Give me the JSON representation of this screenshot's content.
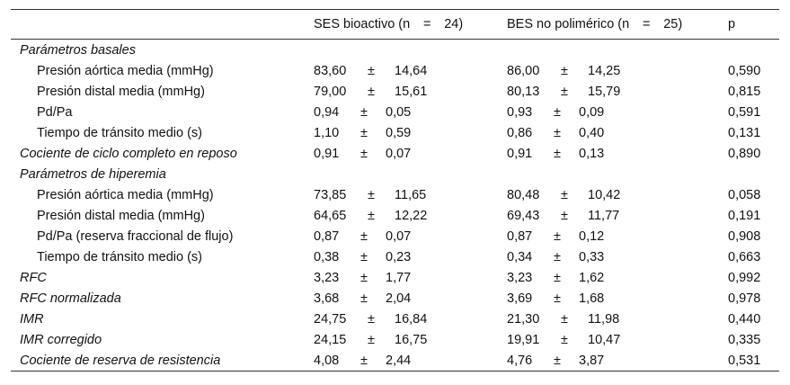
{
  "header": {
    "col_a": {
      "label": "SES bioactivo (n",
      "eq": "=",
      "n": "24)"
    },
    "col_b": {
      "label": "BES no polimérico (n",
      "eq": "=",
      "n": "25)"
    },
    "col_p": "p"
  },
  "pm_symbol": "±",
  "rows": [
    {
      "label": "Parámetros basales",
      "style": "section"
    },
    {
      "label": "Presión aórtica media (mmHg)",
      "style": "indent",
      "a1": "83,60",
      "a2": "14,64",
      "b1": "86,00",
      "b2": "14,25",
      "p": "0,590"
    },
    {
      "label": "Presión distal media (mmHg)",
      "style": "indent",
      "a1": "79,00",
      "a2": "15,61",
      "b1": "80,13",
      "b2": "15,79",
      "p": "0,815"
    },
    {
      "label": "Pd/Pa",
      "style": "indent",
      "a1": "0,94",
      "a2": "0,05",
      "b1": "0,93",
      "b2": "0,09",
      "p": "0,591"
    },
    {
      "label": "Tiempo de tránsito medio (s)",
      "style": "indent",
      "a1": "1,10",
      "a2": "0,59",
      "b1": "0,86",
      "b2": "0,40",
      "p": "0,131"
    },
    {
      "label": "Cociente de ciclo completo en reposo",
      "style": "italic",
      "a1": "0,91",
      "a2": "0,07",
      "b1": "0,91",
      "b2": "0,13",
      "p": "0,890"
    },
    {
      "label": "Parámetros de hiperemia",
      "style": "section"
    },
    {
      "label": "Presión aórtica media (mmHg)",
      "style": "indent",
      "a1": "73,85",
      "a2": "11,65",
      "b1": "80,48",
      "b2": "10,42",
      "p": "0,058"
    },
    {
      "label": "Presión distal media (mmHg)",
      "style": "indent",
      "a1": "64,65",
      "a2": "12,22",
      "b1": "69,43",
      "b2": "11,77",
      "p": "0,191"
    },
    {
      "label": "Pd/Pa (reserva fraccional de flujo)",
      "style": "indent",
      "a1": "0,87",
      "a2": "0,07",
      "b1": "0,87",
      "b2": "0,12",
      "p": "0,908"
    },
    {
      "label": "Tiempo de tránsito medio (s)",
      "style": "indent",
      "a1": "0,38",
      "a2": "0,23",
      "b1": "0,34",
      "b2": "0,33",
      "p": "0,663"
    },
    {
      "label": "RFC",
      "style": "italic",
      "a1": "3,23",
      "a2": "1,77",
      "b1": "3,23",
      "b2": "1,62",
      "p": "0,992"
    },
    {
      "label": "RFC normalizada",
      "style": "italic",
      "a1": "3,68",
      "a2": "2,04",
      "b1": "3,69",
      "b2": "1,68",
      "p": "0,978"
    },
    {
      "label": "IMR",
      "style": "italic",
      "a1": "24,75",
      "a2": "16,84",
      "b1": "21,30",
      "b2": "11,98",
      "p": "0,440"
    },
    {
      "label": "IMR corregido",
      "style": "italic",
      "a1": "24,15",
      "a2": "16,75",
      "b1": "19,91",
      "b2": "10,47",
      "p": "0,335"
    },
    {
      "label": "Cociente de reserva de resistencia",
      "style": "italic",
      "a1": "4,08",
      "a2": "2,44",
      "b1": "4,76",
      "b2": "3,87",
      "p": "0,531"
    }
  ]
}
